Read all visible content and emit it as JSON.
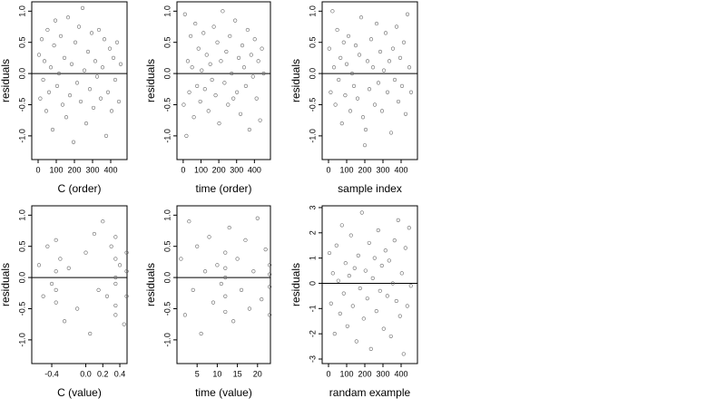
{
  "chart_data": [
    {
      "type": "scatter",
      "x_label": "C (order)",
      "y_label": "residuals",
      "color": "#666666",
      "hline": 0,
      "x": [
        5,
        12,
        20,
        28,
        35,
        45,
        52,
        60,
        70,
        80,
        88,
        95,
        105,
        115,
        125,
        135,
        145,
        155,
        165,
        175,
        185,
        195,
        205,
        215,
        225,
        235,
        245,
        255,
        265,
        275,
        285,
        295,
        305,
        315,
        325,
        335,
        345,
        355,
        365,
        375,
        385,
        395,
        405,
        415,
        425,
        435,
        445,
        455
      ],
      "y": [
        0.3,
        -0.4,
        0.55,
        -0.1,
        0.2,
        -0.6,
        0.7,
        -0.3,
        0.1,
        -0.9,
        0.45,
        0.85,
        -0.2,
        0.0,
        0.6,
        -0.5,
        0.25,
        -0.7,
        0.9,
        -0.35,
        0.15,
        -1.1,
        0.5,
        -0.15,
        0.75,
        -0.45,
        1.05,
        0.05,
        -0.8,
        0.35,
        -0.25,
        0.65,
        -0.55,
        0.2,
        -0.05,
        0.7,
        -0.4,
        0.1,
        0.55,
        -1.0,
        -0.3,
        0.4,
        -0.6,
        0.25,
        -0.1,
        0.5,
        -0.45,
        0.15
      ],
      "xlim": [
        -35,
        490
      ],
      "ylim": [
        -1.38,
        1.15
      ],
      "xticks": [
        0,
        100,
        200,
        300,
        400
      ],
      "yticks": [
        {
          "value": -1,
          "label": "-1.0"
        },
        {
          "value": -0.5,
          "label": "-0.5"
        },
        {
          "value": 0,
          "label": "0.0"
        },
        {
          "value": 0.5,
          "label": "0.5"
        },
        {
          "value": 1,
          "label": "1.0"
        }
      ]
    },
    {
      "type": "scatter",
      "x_label": "time (order)",
      "y_label": "residuals",
      "color": "#666666",
      "hline": 0,
      "x": [
        3,
        10,
        18,
        26,
        34,
        42,
        50,
        60,
        68,
        78,
        86,
        96,
        104,
        114,
        122,
        132,
        142,
        152,
        162,
        172,
        182,
        192,
        202,
        212,
        222,
        232,
        242,
        252,
        262,
        272,
        282,
        292,
        302,
        312,
        322,
        332,
        342,
        352,
        362,
        372,
        382,
        392,
        402,
        412,
        422,
        432,
        442,
        452
      ],
      "y": [
        -0.5,
        0.95,
        -1.0,
        0.2,
        -0.3,
        0.6,
        0.1,
        -0.7,
        0.8,
        -0.2,
        0.4,
        -0.45,
        0.05,
        0.65,
        -0.25,
        0.3,
        -0.6,
        0.15,
        -0.1,
        0.75,
        -0.35,
        0.5,
        -0.8,
        0.2,
        1.0,
        -0.15,
        0.35,
        -0.5,
        0.6,
        0.0,
        -0.4,
        0.85,
        -0.3,
        0.25,
        -0.65,
        0.45,
        0.1,
        -0.2,
        0.7,
        -0.9,
        0.3,
        -0.05,
        0.55,
        -0.4,
        0.2,
        -0.75,
        0.4,
        0.0
      ],
      "xlim": [
        -35,
        490
      ],
      "ylim": [
        -1.38,
        1.15
      ],
      "xticks": [
        0,
        100,
        200,
        300,
        400
      ],
      "yticks": [
        {
          "value": -1,
          "label": "-1.0"
        },
        {
          "value": -0.5,
          "label": "-0.5"
        },
        {
          "value": 0,
          "label": "0.0"
        },
        {
          "value": 0.5,
          "label": "0.5"
        },
        {
          "value": 1,
          "label": "1.0"
        }
      ]
    },
    {
      "type": "scatter",
      "x_label": "sample index",
      "y_label": "residuals",
      "color": "#666666",
      "hline": 0,
      "x": [
        4,
        12,
        22,
        30,
        38,
        48,
        56,
        66,
        74,
        84,
        92,
        100,
        110,
        120,
        130,
        140,
        150,
        160,
        170,
        180,
        190,
        200,
        205,
        215,
        225,
        235,
        245,
        255,
        265,
        275,
        285,
        295,
        305,
        315,
        325,
        335,
        345,
        355,
        365,
        375,
        385,
        395,
        405,
        415,
        425,
        435,
        445,
        455
      ],
      "y": [
        0.4,
        -0.3,
        1.0,
        0.1,
        -0.5,
        0.7,
        -0.1,
        0.25,
        -0.8,
        0.5,
        -0.35,
        0.15,
        0.6,
        -0.6,
        0.0,
        -0.2,
        0.45,
        -0.4,
        0.3,
        0.9,
        -0.7,
        -1.15,
        -0.9,
        0.2,
        -0.25,
        0.55,
        0.1,
        -0.5,
        0.8,
        -0.15,
        0.35,
        -0.6,
        0.05,
        0.65,
        -0.3,
        0.2,
        -0.95,
        0.4,
        -0.1,
        0.75,
        -0.45,
        0.25,
        -0.2,
        0.5,
        -0.65,
        0.95,
        0.1,
        -0.3
      ],
      "xlim": [
        -35,
        490
      ],
      "ylim": [
        -1.38,
        1.15
      ],
      "xticks": [
        0,
        100,
        200,
        300,
        400
      ],
      "yticks": [
        {
          "value": -1,
          "label": "-1.0"
        },
        {
          "value": -0.5,
          "label": "-0.5"
        },
        {
          "value": 0,
          "label": "0.0"
        },
        {
          "value": 0.5,
          "label": "0.5"
        },
        {
          "value": 1,
          "label": "1.0"
        }
      ]
    },
    {
      "type": "scatter",
      "x_label": "C (value)",
      "y_label": "residuals",
      "color": "#666666",
      "hline": 0,
      "x": [
        -0.55,
        -0.5,
        -0.45,
        -0.4,
        -0.35,
        -0.35,
        -0.35,
        -0.35,
        -0.3,
        -0.25,
        -0.2,
        -0.1,
        0.0,
        0.05,
        0.1,
        0.15,
        0.2,
        0.25,
        0.3,
        0.35,
        0.35,
        0.35,
        0.35,
        0.35,
        0.35,
        0.4,
        0.45,
        0.48,
        0.48,
        0.48
      ],
      "y": [
        0.2,
        -0.3,
        0.5,
        -0.1,
        0.6,
        -0.4,
        0.1,
        -0.2,
        0.3,
        -0.7,
        0.15,
        -0.5,
        0.4,
        -0.9,
        0.7,
        -0.2,
        0.9,
        -0.3,
        0.5,
        -0.6,
        0.3,
        -0.1,
        0.0,
        0.65,
        -0.45,
        0.2,
        -0.75,
        0.4,
        -0.3,
        0.1
      ],
      "xlim": [
        -0.635,
        0.485
      ],
      "ylim": [
        -1.38,
        1.15
      ],
      "xticks": [
        -0.4,
        {
          "value": 0,
          "label": "0.0"
        },
        0.2,
        0.4
      ],
      "yticks": [
        {
          "value": -1,
          "label": "-1.0"
        },
        {
          "value": -0.5,
          "label": "-0.5"
        },
        {
          "value": 0,
          "label": "0.0"
        },
        {
          "value": 0.5,
          "label": "0.5"
        },
        {
          "value": 1,
          "label": "1.0"
        }
      ]
    },
    {
      "type": "scatter",
      "x_label": "time (value)",
      "y_label": "residuals",
      "color": "#666666",
      "hline": 0,
      "x": [
        1,
        2,
        3,
        4,
        5,
        6,
        7,
        8,
        9,
        10,
        11,
        12,
        12,
        12,
        12,
        12,
        13,
        14,
        15,
        16,
        17,
        18,
        19,
        20,
        21,
        22,
        23,
        23,
        23,
        23
      ],
      "y": [
        0.3,
        -0.6,
        0.9,
        -0.2,
        0.5,
        -0.9,
        0.1,
        0.65,
        -0.4,
        0.2,
        -0.1,
        0.4,
        -0.3,
        0.0,
        -0.55,
        0.15,
        0.8,
        -0.7,
        0.3,
        -0.2,
        0.6,
        -0.5,
        0.1,
        0.95,
        -0.35,
        0.45,
        -0.15,
        0.2,
        0.05,
        -0.6
      ],
      "xlim": [
        0,
        23.2
      ],
      "ylim": [
        -1.38,
        1.15
      ],
      "xticks": [
        5,
        10,
        15,
        20
      ],
      "yticks": [
        {
          "value": -1,
          "label": "-1.0"
        },
        {
          "value": -0.5,
          "label": "-0.5"
        },
        {
          "value": 0,
          "label": "0.0"
        },
        {
          "value": 0.5,
          "label": "0.5"
        },
        {
          "value": 1,
          "label": "1.0"
        }
      ]
    },
    {
      "type": "scatter",
      "x_label": "randam example",
      "y_label": "residuals",
      "color": "#666666",
      "hline": 0,
      "x": [
        5,
        14,
        24,
        34,
        44,
        54,
        64,
        74,
        84,
        94,
        104,
        114,
        124,
        134,
        144,
        154,
        164,
        174,
        184,
        194,
        204,
        214,
        224,
        234,
        244,
        254,
        264,
        274,
        284,
        294,
        304,
        314,
        324,
        334,
        344,
        354,
        364,
        374,
        384,
        394,
        404,
        414,
        424,
        434,
        444,
        454
      ],
      "y": [
        1.2,
        -0.8,
        0.4,
        -2.0,
        1.5,
        0.1,
        -1.2,
        2.3,
        -0.4,
        0.8,
        -1.7,
        0.3,
        1.9,
        -0.9,
        0.6,
        -2.3,
        1.1,
        -0.2,
        2.8,
        -1.4,
        0.5,
        -0.6,
        1.6,
        -2.6,
        0.2,
        1.0,
        -1.1,
        2.1,
        -0.3,
        0.7,
        -1.8,
        1.3,
        -0.5,
        0.9,
        -2.1,
        0.0,
        1.7,
        -0.7,
        2.5,
        -1.3,
        0.4,
        -2.8,
        1.4,
        -0.9,
        2.2,
        -0.1
      ],
      "xlim": [
        -35,
        490
      ],
      "ylim": [
        -3.18,
        3.07
      ],
      "xticks": [
        0,
        100,
        200,
        300,
        400
      ],
      "yticks": [
        -3,
        -2,
        -1,
        0,
        1,
        2,
        3
      ]
    }
  ]
}
